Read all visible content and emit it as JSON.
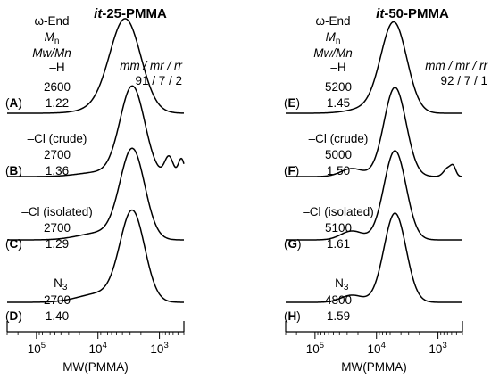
{
  "chart_data": [
    {
      "type": "line",
      "title_prefix": "it",
      "title_suffix": "-25-PMMA",
      "xlabel": "MW(PMMA)",
      "x_scale": "log",
      "x_reversed": true,
      "xlim": [
        300000,
        400
      ],
      "x_ticks": [
        {
          "value": 100000,
          "base": "10",
          "exp": "5"
        },
        {
          "value": 10000,
          "base": "10",
          "exp": "4"
        },
        {
          "value": 1000,
          "base": "10",
          "exp": "3"
        }
      ],
      "header": {
        "col1": "ω-End",
        "col2_base": "M",
        "col2_sub": "n",
        "col3": "Mw/Mn"
      },
      "tacticity_header": "mm / mr / rr",
      "tacticity_values": "91 / 7 / 2",
      "series": [
        {
          "panel": "A",
          "end": "–H",
          "mn": "2600",
          "pdi": "1.22",
          "peaks": [
            {
              "mw": 3550,
              "w": 0.25,
              "h": 1.0
            },
            {
              "mw": 6500,
              "w": 0.35,
              "h": 0.08
            }
          ],
          "edge_peaks": []
        },
        {
          "panel": "B",
          "end": "–Cl (crude)",
          "mn": "2700",
          "pdi": "1.36",
          "peaks": [
            {
              "mw": 2750,
              "w": 0.2,
              "h": 1.0
            },
            {
              "mw": 9000,
              "w": 0.35,
              "h": 0.05
            }
          ],
          "edge_peaks": [
            {
              "mw": 700,
              "w": 0.07,
              "h": 0.22
            },
            {
              "mw": 440,
              "w": 0.05,
              "h": 0.2
            }
          ]
        },
        {
          "panel": "C",
          "end": "–Cl (isolated)",
          "mn": "2700",
          "pdi": "1.29",
          "peaks": [
            {
              "mw": 2750,
              "w": 0.2,
              "h": 1.0
            },
            {
              "mw": 9000,
              "w": 0.35,
              "h": 0.08
            }
          ],
          "edge_peaks": []
        },
        {
          "panel": "D",
          "end": "–N",
          "end_sub": "3",
          "mn": "2700",
          "pdi": "1.40",
          "peaks": [
            {
              "mw": 2750,
              "w": 0.2,
              "h": 1.0
            },
            {
              "mw": 9000,
              "w": 0.35,
              "h": 0.1
            }
          ],
          "edge_peaks": []
        }
      ]
    },
    {
      "type": "line",
      "title_prefix": "it",
      "title_suffix": "-50-PMMA",
      "xlabel": "MW(PMMA)",
      "x_scale": "log",
      "x_reversed": true,
      "xlim": [
        300000,
        400
      ],
      "x_ticks": [
        {
          "value": 100000,
          "base": "10",
          "exp": "5"
        },
        {
          "value": 10000,
          "base": "10",
          "exp": "4"
        },
        {
          "value": 1000,
          "base": "10",
          "exp": "3"
        }
      ],
      "header": {
        "col1": "ω-End",
        "col2_base": "M",
        "col2_sub": "n",
        "col3": "Mw/Mn"
      },
      "tacticity_header": "mm / mr / rr",
      "tacticity_values": "92 / 7 / 1",
      "series": [
        {
          "panel": "E",
          "end": "–H",
          "mn": "5200",
          "pdi": "1.45",
          "peaks": [
            {
              "mw": 5200,
              "w": 0.21,
              "h": 1.0
            },
            {
              "mw": 13000,
              "w": 0.3,
              "h": 0.06
            }
          ],
          "edge_peaks": []
        },
        {
          "panel": "F",
          "end": "–Cl (crude)",
          "mn": "5000",
          "pdi": "1.50",
          "peaks": [
            {
              "mw": 5000,
              "w": 0.18,
              "h": 1.0
            },
            {
              "mw": 25000,
              "w": 0.18,
              "h": 0.09
            }
          ],
          "edge_peaks": [
            {
              "mw": 680,
              "w": 0.07,
              "h": 0.1
            },
            {
              "mw": 560,
              "w": 0.04,
              "h": 0.08
            }
          ]
        },
        {
          "panel": "G",
          "end": "–Cl (isolated)",
          "mn": "5100",
          "pdi": "1.61",
          "peaks": [
            {
              "mw": 5000,
              "w": 0.18,
              "h": 1.0
            },
            {
              "mw": 25000,
              "w": 0.18,
              "h": 0.1
            }
          ],
          "edge_peaks": []
        },
        {
          "panel": "H",
          "end": "–N",
          "end_sub": "3",
          "mn": "4800",
          "pdi": "1.59",
          "peaks": [
            {
              "mw": 5000,
              "w": 0.18,
              "h": 1.0
            },
            {
              "mw": 25000,
              "w": 0.18,
              "h": 0.08
            }
          ],
          "edge_peaks": []
        }
      ]
    }
  ]
}
